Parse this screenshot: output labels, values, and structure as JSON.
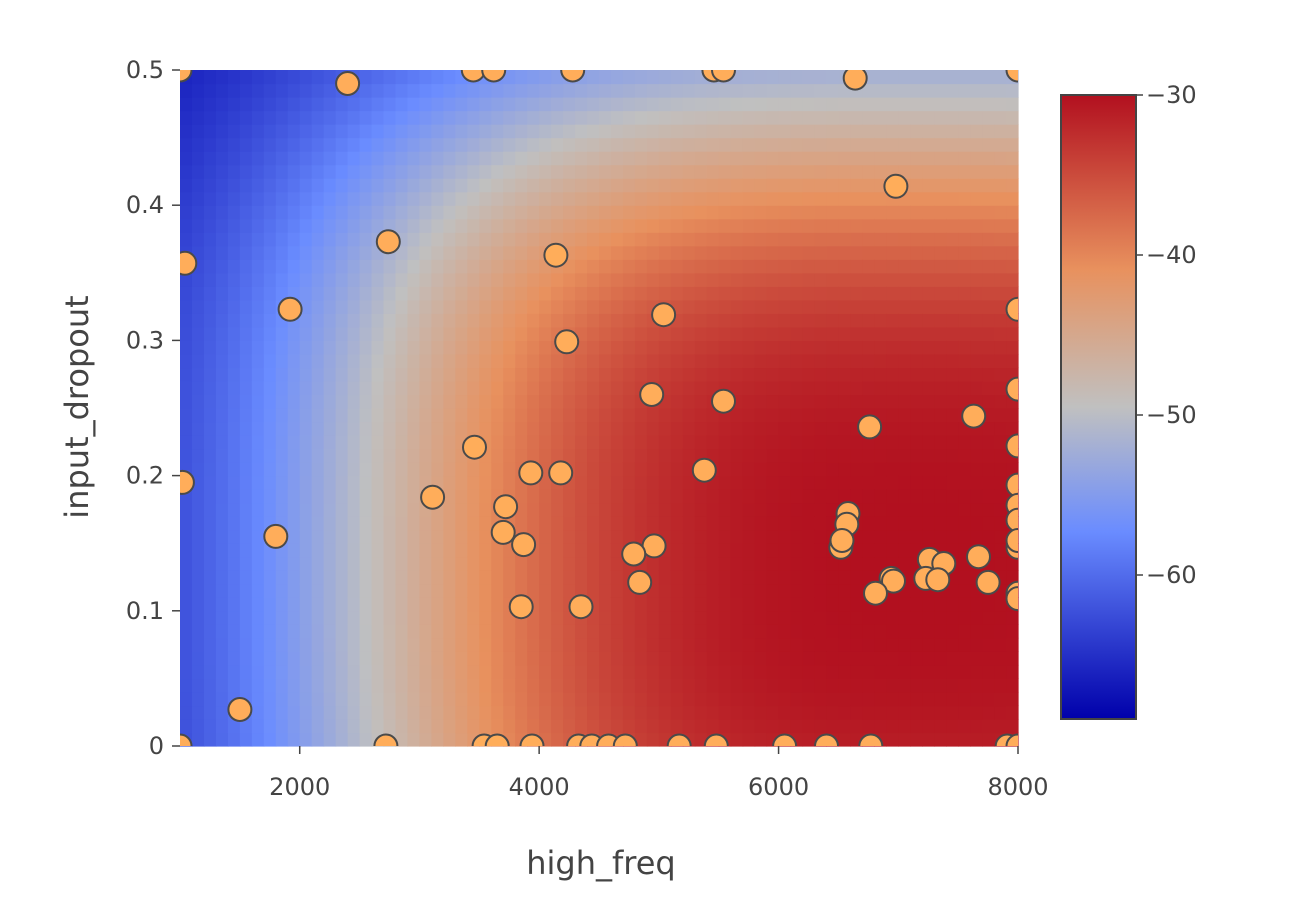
{
  "chart_data": {
    "type": "heatmap",
    "xlabel": "high_freq",
    "ylabel": "input_dropout",
    "xlim": [
      1000,
      8000
    ],
    "ylim": [
      0,
      0.5
    ],
    "x_ticks": [
      {
        "value": 2000,
        "label": "2000"
      },
      {
        "value": 4000,
        "label": "4000"
      },
      {
        "value": 6000,
        "label": "6000"
      },
      {
        "value": 8000,
        "label": "8000"
      }
    ],
    "y_ticks": [
      {
        "value": 0,
        "label": "0"
      },
      {
        "value": 0.1,
        "label": "0.1"
      },
      {
        "value": 0.2,
        "label": "0.2"
      },
      {
        "value": 0.3,
        "label": "0.3"
      },
      {
        "value": 0.4,
        "label": "0.4"
      },
      {
        "value": 0.5,
        "label": "0.5"
      }
    ],
    "colorbar": {
      "range": [
        -69,
        -30
      ],
      "ticks": [
        {
          "value": -30,
          "label": "−30"
        },
        {
          "value": -40,
          "label": "−40"
        },
        {
          "value": -50,
          "label": "−50"
        },
        {
          "value": -60,
          "label": "−60"
        }
      ],
      "colorscale": [
        [
          0.0,
          "#0000aa"
        ],
        [
          0.3,
          "#6a8cff"
        ],
        [
          0.5,
          "#c0c0c0"
        ],
        [
          0.72,
          "#e8915e"
        ],
        [
          1.0,
          "#b2101f"
        ]
      ]
    },
    "marker_color": "#ffad5a",
    "marker_edge_color": "#4a4a4a",
    "surface_model": {
      "peak_x": 7200,
      "peak_y": 0.13,
      "peak_value": -30,
      "x_scale": 5200,
      "y_scale": 0.39,
      "floor_value": -69
    },
    "points": [
      [
        1000,
        0.5
      ],
      [
        2400,
        0.49
      ],
      [
        3450,
        0.5
      ],
      [
        3620,
        0.5
      ],
      [
        4280,
        0.5
      ],
      [
        5460,
        0.5
      ],
      [
        5540,
        0.5
      ],
      [
        6640,
        0.494
      ],
      [
        8000,
        0.5
      ],
      [
        6980,
        0.414
      ],
      [
        2740,
        0.373
      ],
      [
        4140,
        0.363
      ],
      [
        1040,
        0.357
      ],
      [
        1920,
        0.323
      ],
      [
        5040,
        0.319
      ],
      [
        8000,
        0.323
      ],
      [
        4230,
        0.299
      ],
      [
        4940,
        0.26
      ],
      [
        5540,
        0.255
      ],
      [
        8000,
        0.264
      ],
      [
        7630,
        0.244
      ],
      [
        6760,
        0.236
      ],
      [
        3460,
        0.221
      ],
      [
        8000,
        0.222
      ],
      [
        3930,
        0.202
      ],
      [
        4180,
        0.202
      ],
      [
        5380,
        0.204
      ],
      [
        1020,
        0.195
      ],
      [
        8000,
        0.193
      ],
      [
        3110,
        0.184
      ],
      [
        3720,
        0.177
      ],
      [
        8000,
        0.178
      ],
      [
        6580,
        0.172
      ],
      [
        6570,
        0.164
      ],
      [
        8000,
        0.167
      ],
      [
        3700,
        0.158
      ],
      [
        1800,
        0.155
      ],
      [
        3870,
        0.149
      ],
      [
        4960,
        0.148
      ],
      [
        6520,
        0.147
      ],
      [
        6530,
        0.152
      ],
      [
        8000,
        0.147
      ],
      [
        8000,
        0.152
      ],
      [
        4790,
        0.142
      ],
      [
        7670,
        0.14
      ],
      [
        7260,
        0.138
      ],
      [
        7380,
        0.135
      ],
      [
        6940,
        0.124
      ],
      [
        7230,
        0.124
      ],
      [
        6960,
        0.122
      ],
      [
        4840,
        0.121
      ],
      [
        7330,
        0.123
      ],
      [
        7750,
        0.121
      ],
      [
        6810,
        0.113
      ],
      [
        8000,
        0.113
      ],
      [
        8000,
        0.109
      ],
      [
        3850,
        0.103
      ],
      [
        4350,
        0.103
      ],
      [
        1500,
        0.027
      ],
      [
        1000,
        0.0
      ],
      [
        2720,
        0.0
      ],
      [
        3540,
        0.0
      ],
      [
        3650,
        0.0
      ],
      [
        3940,
        0.0
      ],
      [
        4330,
        0.0
      ],
      [
        4440,
        0.0
      ],
      [
        4580,
        0.0
      ],
      [
        4720,
        0.0
      ],
      [
        5170,
        0.0
      ],
      [
        5480,
        0.0
      ],
      [
        6050,
        0.0
      ],
      [
        6400,
        0.0
      ],
      [
        6770,
        0.0
      ],
      [
        7910,
        0.0
      ],
      [
        8000,
        0.0
      ]
    ]
  }
}
